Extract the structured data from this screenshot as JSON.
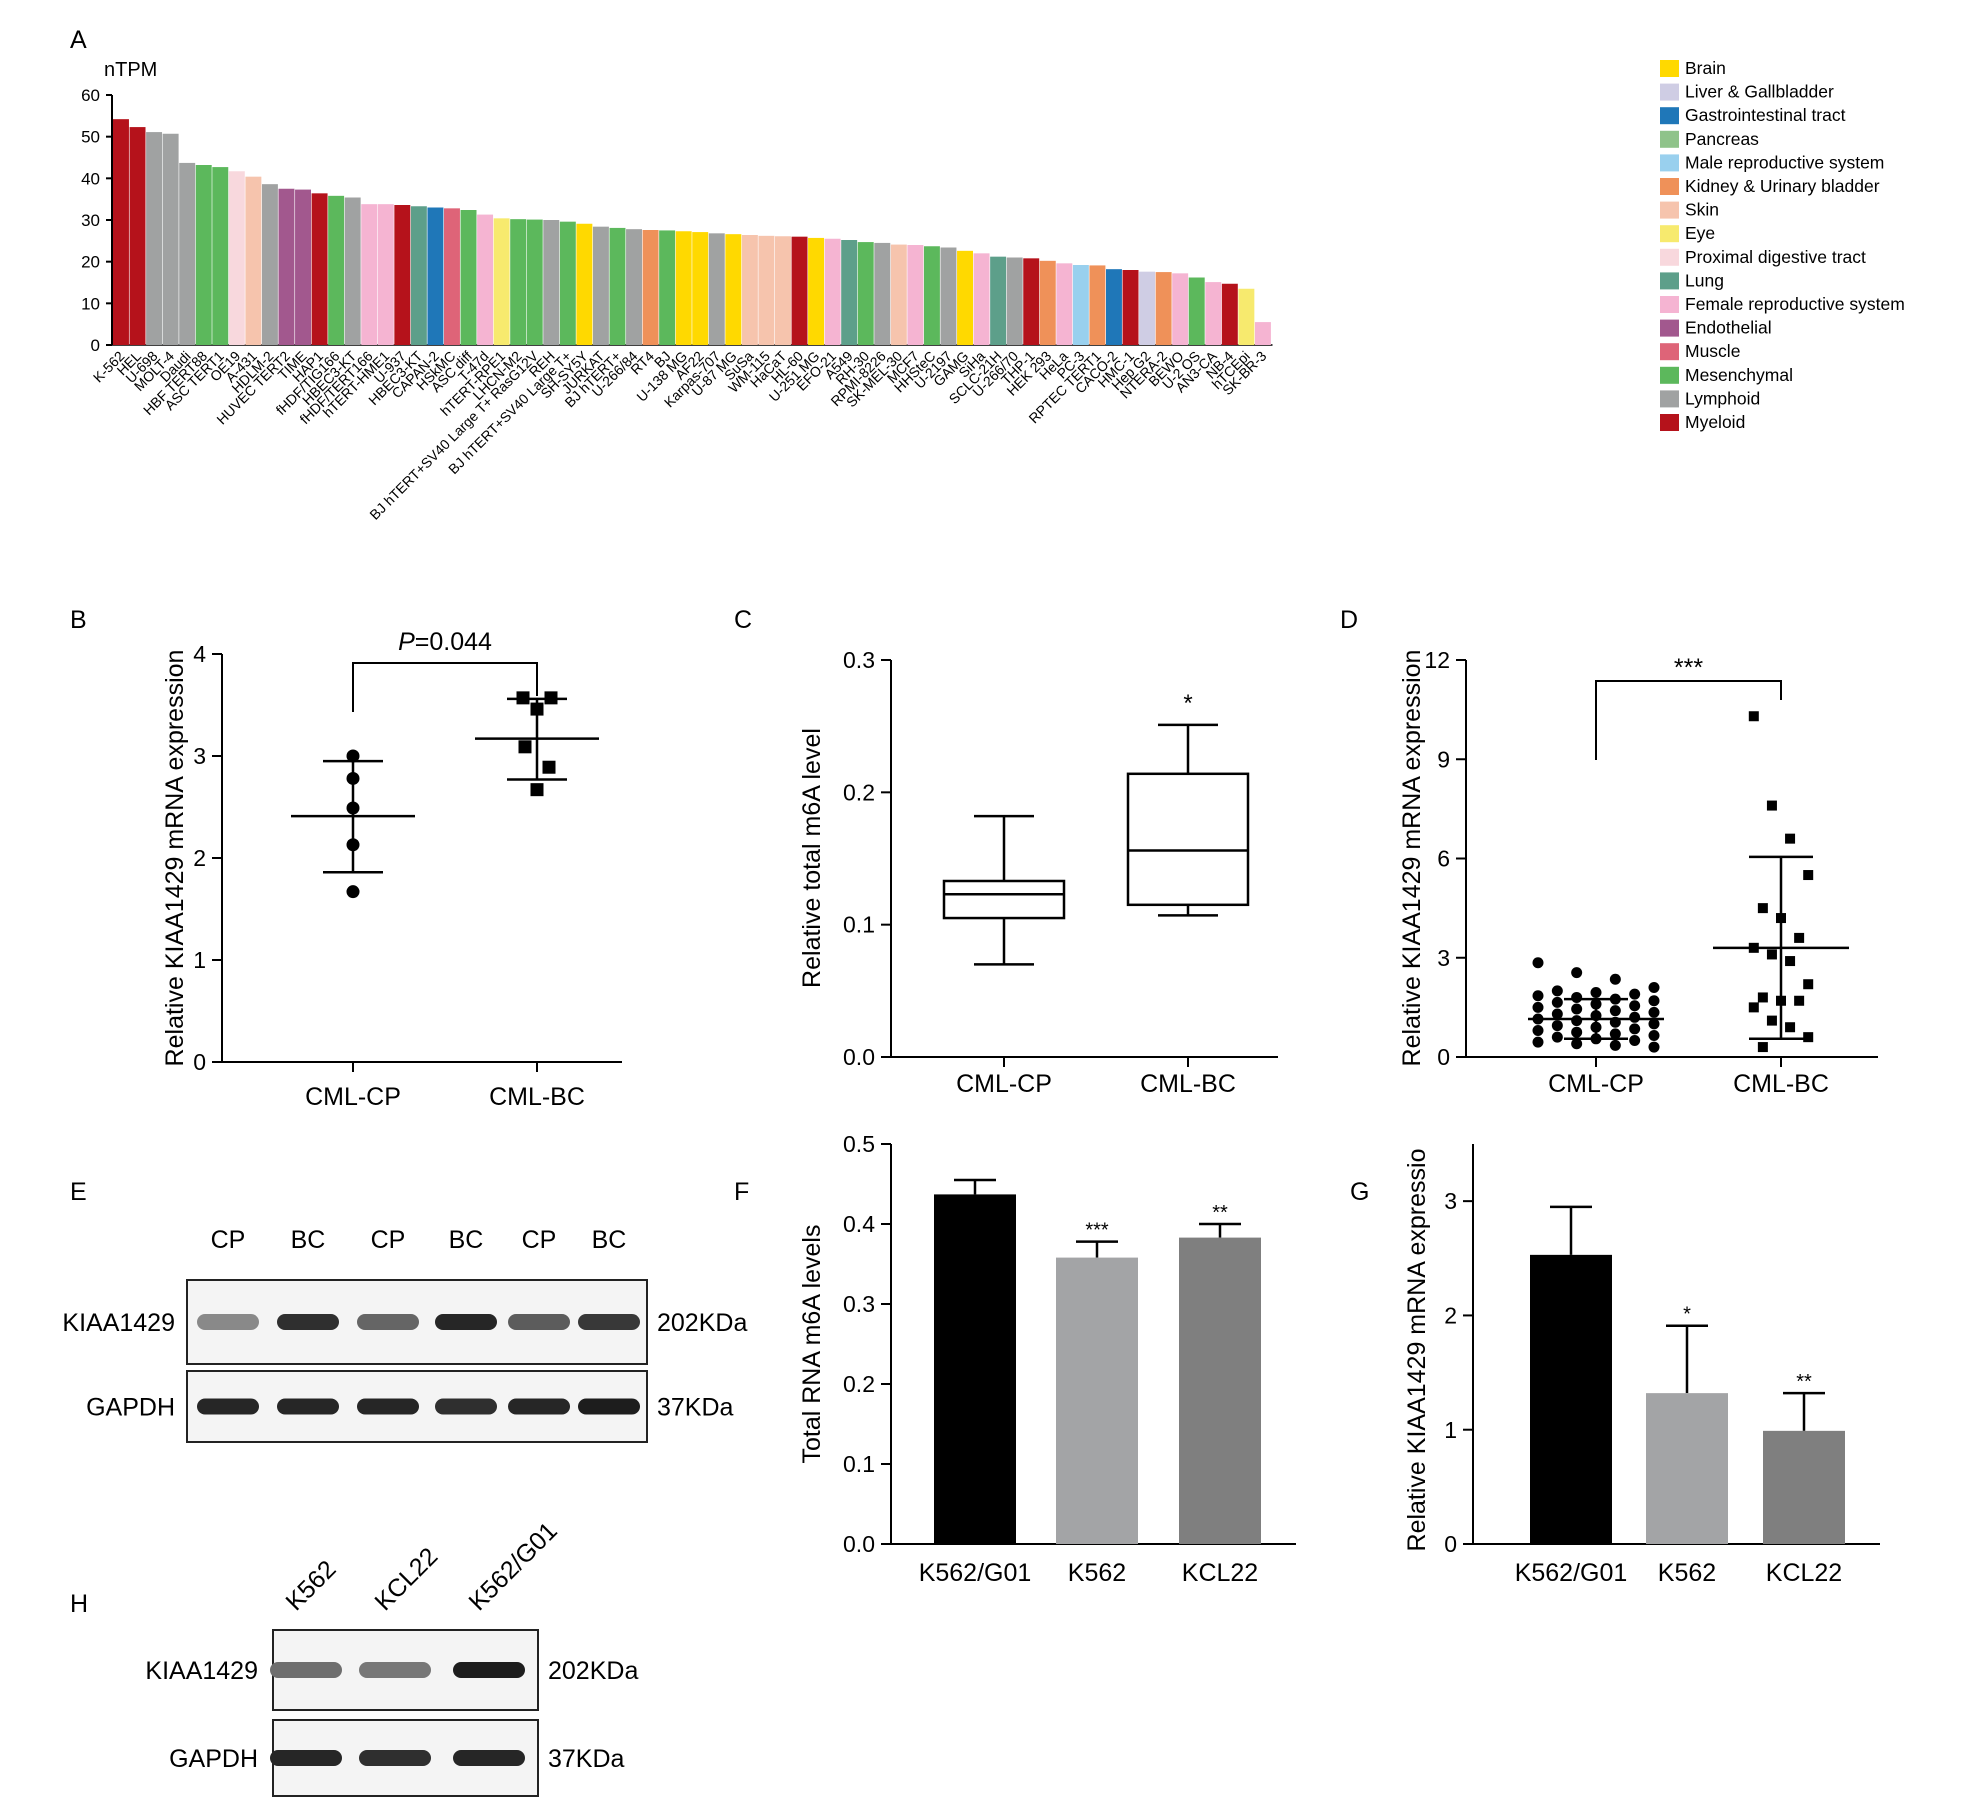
{
  "figure": {
    "panel_labels": [
      "A",
      "B",
      "C",
      "D",
      "E",
      "F",
      "G",
      "H"
    ]
  },
  "chart_data": [
    {
      "panel": "A",
      "type": "bar",
      "ylabel": "nTPM",
      "ylim": [
        0,
        60
      ],
      "yticks": [
        0,
        10,
        20,
        30,
        40,
        50,
        60
      ],
      "legend": {
        "position": "right",
        "entries": [
          {
            "name": "Brain",
            "color": "#ffd900"
          },
          {
            "name": "Liver & Gallbladder",
            "color": "#cfcde4"
          },
          {
            "name": "Gastrointestinal tract",
            "color": "#1f77b8"
          },
          {
            "name": "Pancreas",
            "color": "#8fc38a"
          },
          {
            "name": "Male reproductive system",
            "color": "#99d0ee"
          },
          {
            "name": "Kidney & Urinary bladder",
            "color": "#ef9159"
          },
          {
            "name": "Skin",
            "color": "#f6c4ad"
          },
          {
            "name": "Eye",
            "color": "#f7ea6e"
          },
          {
            "name": "Proximal digestive tract",
            "color": "#f8d8dd"
          },
          {
            "name": "Lung",
            "color": "#5d9f8a"
          },
          {
            "name": "Female reproductive system",
            "color": "#f5b4d2"
          },
          {
            "name": "Endothelial",
            "color": "#a2588e"
          },
          {
            "name": "Muscle",
            "color": "#de6478"
          },
          {
            "name": "Mesenchymal",
            "color": "#5cb85c"
          },
          {
            "name": "Lymphoid",
            "color": "#a0a2a2"
          },
          {
            "name": "Myeloid",
            "color": "#b5121b"
          }
        ]
      },
      "categories": [
        "K-562",
        "HEL",
        "U-698",
        "MOLT-4",
        "Daudi",
        "HBF TERT88",
        "ASC TERT1",
        "OE19",
        "A-431",
        "HDLM-2",
        "HUVEC TERT2",
        "TIME",
        "HAP1",
        "fHDF/TIG166",
        "HBEC3-KT",
        "fHDF/TERT166",
        "hTERT-HME1",
        "U-937",
        "HBEC3-KT",
        "CAPAN-2",
        "HSkMC",
        "ASC diff",
        "T-47d",
        "hTERT-RPE1",
        "LHCN-M2",
        "BJ hTERT+SV40 Large T+ RasG12V",
        "REH",
        "BJ hTERT+SV40 Large T+",
        "SH-SY5Y",
        "JURKAT",
        "BJ hTERT+",
        "U-266/84",
        "RT4",
        "BJ",
        "U-138 MG",
        "AF22",
        "Karpas-707",
        "U-87 MG",
        "SuSa",
        "WM-115",
        "HaCaT",
        "HL-60",
        "U-251 MG",
        "EFO-21",
        "A549",
        "RH-30",
        "RPMI-8226",
        "SK-MEL-30",
        "MCF7",
        "HHSteC",
        "U-2197",
        "GAMG",
        "SiHa",
        "SCLC-21H",
        "U-266/70",
        "THP-1",
        "HEK 293",
        "HeLa",
        "PC-3",
        "RPTEC TERT1",
        "CACO-2",
        "HMC-1",
        "Hep G2",
        "NTERA-2",
        "BEWO",
        "U-2 OS",
        "AN3-CA",
        "NB-4",
        "hTCEpi",
        "SK-BR-3"
      ],
      "values": [
        54.2,
        52.3,
        51.1,
        50.7,
        43.7,
        43.2,
        42.7,
        41.7,
        40.4,
        38.6,
        37.5,
        37.3,
        36.4,
        35.8,
        35.4,
        33.8,
        33.8,
        33.6,
        33.3,
        33.0,
        32.8,
        32.4,
        31.3,
        30.4,
        30.2,
        30.1,
        30.0,
        29.6,
        29.1,
        28.4,
        28.1,
        27.8,
        27.6,
        27.5,
        27.3,
        27.1,
        26.8,
        26.6,
        26.4,
        26.2,
        26.1,
        26.0,
        25.7,
        25.5,
        25.2,
        24.7,
        24.5,
        24.1,
        24.0,
        23.7,
        23.4,
        22.6,
        22.0,
        21.2,
        21.0,
        20.8,
        20.2,
        19.6,
        19.2,
        19.1,
        18.2,
        18.0,
        17.6,
        17.5,
        17.2,
        16.2,
        15.1,
        14.7,
        13.5,
        5.5
      ],
      "bar_tissues": [
        "Myeloid",
        "Myeloid",
        "Lymphoid",
        "Lymphoid",
        "Lymphoid",
        "Mesenchymal",
        "Mesenchymal",
        "Proximal digestive tract",
        "Skin",
        "Lymphoid",
        "Endothelial",
        "Endothelial",
        "Myeloid",
        "Mesenchymal",
        "Lymphoid",
        "Female reproductive system",
        "Female reproductive system",
        "Myeloid",
        "Lung",
        "Gastrointestinal tract",
        "Muscle",
        "Mesenchymal",
        "Female reproductive system",
        "Eye",
        "Mesenchymal",
        "Mesenchymal",
        "Lymphoid",
        "Mesenchymal",
        "Brain",
        "Lymphoid",
        "Mesenchymal",
        "Lymphoid",
        "Kidney & Urinary bladder",
        "Mesenchymal",
        "Brain",
        "Brain",
        "Lymphoid",
        "Brain",
        "Skin",
        "Skin",
        "Skin",
        "Myeloid",
        "Brain",
        "Female reproductive system",
        "Lung",
        "Mesenchymal",
        "Lymphoid",
        "Skin",
        "Female reproductive system",
        "Mesenchymal",
        "Lymphoid",
        "Brain",
        "Female reproductive system",
        "Lung",
        "Lymphoid",
        "Myeloid",
        "Kidney & Urinary bladder",
        "Female reproductive system",
        "Male reproductive system",
        "Kidney & Urinary bladder",
        "Gastrointestinal tract",
        "Myeloid",
        "Liver & Gallbladder",
        "Kidney & Urinary bladder",
        "Female reproductive system",
        "Mesenchymal",
        "Female reproductive system",
        "Myeloid",
        "Eye",
        "Female reproductive system"
      ]
    },
    {
      "panel": "B",
      "type": "scatter",
      "ylabel": "Relative KIAA1429 mRNA expression",
      "ylim": [
        0,
        4
      ],
      "yticks": [
        0,
        1,
        2,
        3,
        4
      ],
      "categories": [
        "CML-CP",
        "CML-BC"
      ],
      "annotation": "P=0.044",
      "annotation_italic": "P",
      "annotation_rest": "=0.044",
      "series": [
        {
          "category": "CML-CP",
          "marker": "circle",
          "points": [
            3.0,
            2.78,
            2.49,
            2.13,
            1.67
          ],
          "mean": 2.41,
          "sd_low": 1.86,
          "sd_high": 2.95
        },
        {
          "category": "CML-BC",
          "marker": "square",
          "points": [
            3.57,
            3.57,
            3.46,
            3.09,
            2.89,
            2.67
          ],
          "mean": 3.17,
          "sd_low": 2.77,
          "sd_high": 3.56
        }
      ]
    },
    {
      "panel": "C",
      "type": "box",
      "ylabel": "Relative total m6A level",
      "ylim": [
        0,
        0.3
      ],
      "yticks": [
        "0.0",
        "0.1",
        "0.2",
        "0.3"
      ],
      "categories": [
        "CML-CP",
        "CML-BC"
      ],
      "boxes": [
        {
          "category": "CML-CP",
          "min": 0.07,
          "q1": 0.105,
          "median": 0.123,
          "q3": 0.133,
          "max": 0.182,
          "sig": ""
        },
        {
          "category": "CML-BC",
          "min": 0.107,
          "q1": 0.115,
          "median": 0.156,
          "q3": 0.214,
          "max": 0.251,
          "sig": "*"
        }
      ]
    },
    {
      "panel": "D",
      "type": "scatter",
      "ylabel": "Relative KIAA1429 mRNA expression",
      "ylim": [
        0,
        12
      ],
      "yticks": [
        0,
        3,
        6,
        9,
        12
      ],
      "categories": [
        "CML-CP",
        "CML-BC"
      ],
      "annotation": "***",
      "series": [
        {
          "category": "CML-CP",
          "marker": "circle",
          "mean": 1.15,
          "sd_low": 0.55,
          "sd_high": 1.75,
          "points": [
            2.85,
            2.55,
            2.35,
            2.1,
            2.0,
            1.95,
            1.9,
            1.85,
            1.8,
            1.75,
            1.7,
            1.65,
            1.6,
            1.55,
            1.5,
            1.45,
            1.4,
            1.35,
            1.3,
            1.25,
            1.2,
            1.15,
            1.1,
            1.05,
            1.0,
            0.95,
            0.9,
            0.85,
            0.8,
            0.75,
            0.7,
            0.65,
            0.6,
            0.55,
            0.5,
            0.45,
            0.4,
            0.35,
            0.3
          ]
        },
        {
          "category": "CML-BC",
          "marker": "square",
          "mean": 3.3,
          "sd_low": 0.55,
          "sd_high": 6.05,
          "points": [
            10.3,
            7.6,
            6.6,
            5.5,
            4.5,
            4.2,
            3.6,
            3.3,
            3.1,
            2.9,
            2.2,
            1.8,
            1.7,
            1.7,
            1.5,
            1.1,
            0.9,
            0.6,
            0.3
          ]
        }
      ]
    },
    {
      "panel": "F",
      "type": "bar",
      "ylabel": "Total RNA m6A levels",
      "ylim": [
        0,
        0.5
      ],
      "yticks": [
        "0.0",
        "0.1",
        "0.2",
        "0.3",
        "0.4",
        "0.5"
      ],
      "categories": [
        "K562/G01",
        "K562",
        "KCL22"
      ],
      "values": [
        0.437,
        0.358,
        0.383
      ],
      "errors": [
        0.018,
        0.02,
        0.017
      ],
      "sig": [
        "",
        "***",
        "**"
      ],
      "colors": [
        "#000000",
        "#a3a4a6",
        "#7f7f7f"
      ]
    },
    {
      "panel": "G",
      "type": "bar",
      "ylabel": "Relative KIAA1429 mRNA expressio",
      "ylim": [
        0,
        3.5
      ],
      "yticks": [
        "0",
        "1",
        "2",
        "3"
      ],
      "categories": [
        "K562/G01",
        "K562",
        "KCL22"
      ],
      "values": [
        2.53,
        1.32,
        0.99
      ],
      "errors": [
        0.42,
        0.59,
        0.33
      ],
      "sig": [
        "",
        "*",
        "**"
      ],
      "colors": [
        "#000000",
        "#a3a4a6",
        "#7f7f7f"
      ]
    }
  ],
  "blots": {
    "E": {
      "lanes": [
        "CP",
        "BC",
        "CP",
        "BC",
        "CP",
        "BC"
      ],
      "rows": [
        {
          "name": "KIAA1429",
          "size": "202KDa",
          "intensity": [
            0.35,
            0.85,
            0.55,
            0.9,
            0.6,
            0.8
          ]
        },
        {
          "name": "GAPDH",
          "size": "37KDa",
          "intensity": [
            0.9,
            0.9,
            0.9,
            0.85,
            0.9,
            0.95
          ]
        }
      ]
    },
    "H": {
      "lanes": [
        "K562",
        "KCL22",
        "K562/G01"
      ],
      "rows": [
        {
          "name": "KIAA1429",
          "size": "202KDa",
          "intensity": [
            0.5,
            0.45,
            0.95
          ]
        },
        {
          "name": "GAPDH",
          "size": "37KDa",
          "intensity": [
            0.9,
            0.85,
            0.9
          ]
        }
      ]
    }
  }
}
